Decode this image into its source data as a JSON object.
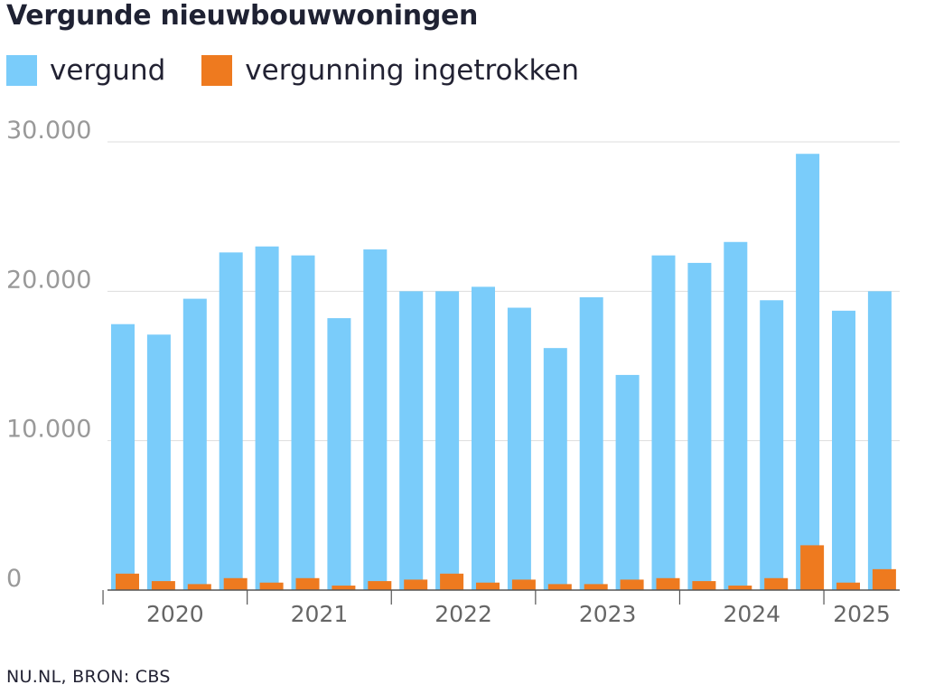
{
  "title": "Vergunde nieuwbouwwoningen",
  "source": "NU.NL, BRON: CBS",
  "colors": {
    "vergund": "#7accfa",
    "ingetrokken": "#ee7a1f",
    "grid": "#dddddd",
    "axis": "#555555",
    "tick_text": "#999999",
    "year_text": "#666666"
  },
  "chart_data": {
    "type": "bar",
    "categories": [
      "2020 Q1",
      "2020 Q2",
      "2020 Q3",
      "2020 Q4",
      "2021 Q1",
      "2021 Q2",
      "2021 Q3",
      "2021 Q4",
      "2022 Q1",
      "2022 Q2",
      "2022 Q3",
      "2022 Q4",
      "2023 Q1",
      "2023 Q2",
      "2023 Q3",
      "2023 Q4",
      "2024 Q1",
      "2024 Q2",
      "2024 Q3",
      "2024 Q4",
      "2025 Q1",
      "2025 Q2"
    ],
    "series": [
      {
        "name": "vergund",
        "values": [
          17800,
          17100,
          19500,
          22600,
          23000,
          22400,
          18200,
          22800,
          20000,
          20000,
          20300,
          18900,
          16200,
          19600,
          14400,
          22400,
          21900,
          23300,
          19400,
          29200,
          18700,
          20000
        ]
      },
      {
        "name": "vergunning ingetrokken",
        "values": [
          1100,
          600,
          400,
          800,
          500,
          800,
          300,
          600,
          700,
          1100,
          500,
          700,
          400,
          400,
          700,
          800,
          600,
          300,
          800,
          3000,
          500,
          1400
        ]
      }
    ],
    "ylim": [
      0,
      30000
    ],
    "y_ticks": [
      0,
      10000,
      20000,
      30000
    ],
    "y_tick_labels": [
      "0",
      "10.000",
      "20.000",
      "30.000"
    ],
    "x_groups": [
      {
        "label": "2020",
        "start": 0,
        "count": 4
      },
      {
        "label": "2021",
        "start": 4,
        "count": 4
      },
      {
        "label": "2022",
        "start": 8,
        "count": 4
      },
      {
        "label": "2023",
        "start": 12,
        "count": 4
      },
      {
        "label": "2024",
        "start": 16,
        "count": 4
      },
      {
        "label": "2025",
        "start": 20,
        "count": 2
      }
    ],
    "grid": true,
    "legend_position": "top-left"
  }
}
